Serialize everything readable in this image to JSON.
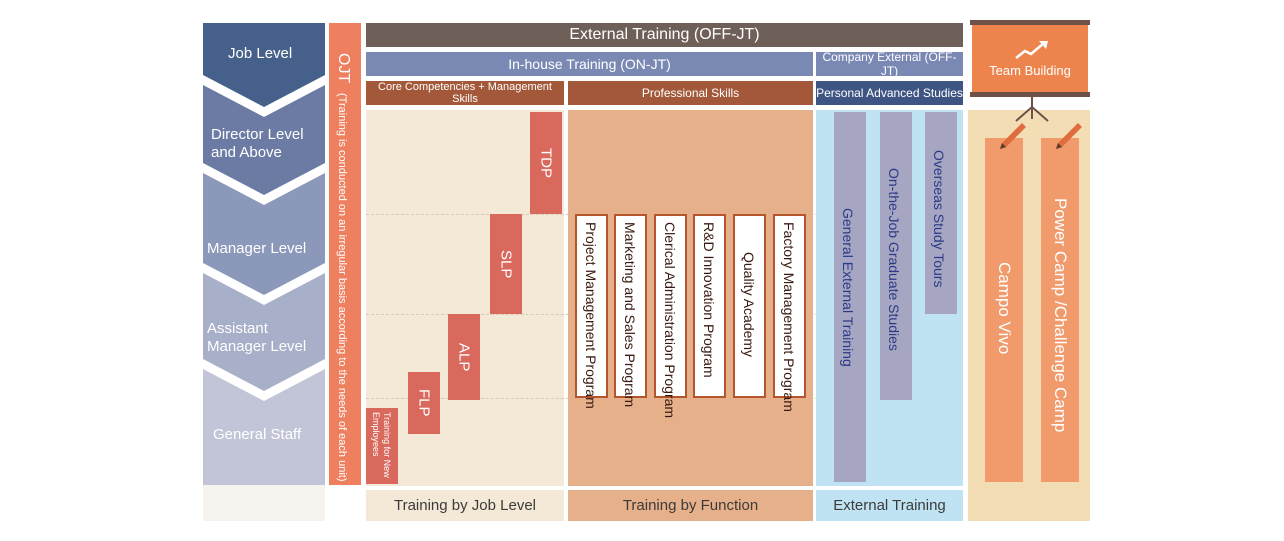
{
  "levels": {
    "header": "Job Level",
    "items": [
      "Director Level and Above",
      "Manager Level",
      "Assistant Manager Level",
      "General Staff"
    ]
  },
  "ojt": {
    "title": "OJT",
    "note": "(Training is conducted on an irregular basis according to the needs of each unit)"
  },
  "headers": {
    "external_offjt": "External Training (OFF-JT)",
    "inhouse_onjt": "In-house Training (ON-JT)",
    "company_external": "Company External (OFF-JT)",
    "core_competencies": "Core Competencies + Management Skills",
    "professional_skills": "Professional Skills",
    "personal_advanced": "Personal Advanced Studies",
    "team_building": "Team Building"
  },
  "job_level_programs": {
    "new_employees": "Training for New Employees",
    "flp": "FLP",
    "alp": "ALP",
    "slp": "SLP",
    "tdp": "TDP"
  },
  "function_programs": [
    "Project Management Program",
    "Marketing and Sales Program",
    "Clerical Administration Program",
    "R&D Innovation Program",
    "Quality Academy",
    "Factory Management Program"
  ],
  "external_programs": [
    "General External Training",
    "On-the-Job Graduate Studies",
    "Overseas Study Tours"
  ],
  "team_programs": [
    "Campo Vivo",
    "Power Camp /Challenge Camp"
  ],
  "footers": {
    "job_level": "Training by Job Level",
    "function": "Training by Function",
    "external": "External Training"
  },
  "colors": {
    "level_dark": "#45608a",
    "ojt": "#ee7f5f",
    "header_dark": "#6e5f58",
    "header_blue": "#7a88b4",
    "header_brown": "#a3583a",
    "header_navy": "#3e5482",
    "job_bar": "#d9695c",
    "function_border": "#b4552e",
    "external_bar": "#a6a6c2",
    "camp_bar": "#f19a6c",
    "team_orange": "#ee844d"
  }
}
